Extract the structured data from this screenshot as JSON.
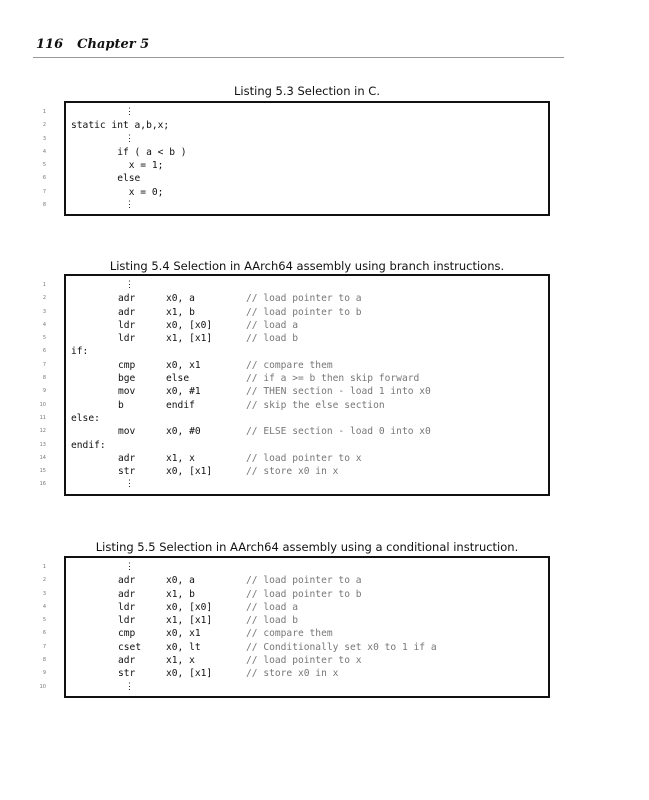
{
  "header": {
    "page_number": "116",
    "chapter": "Chapter 5"
  },
  "listings": [
    {
      "caption": "Listing 5.3 Selection in C.",
      "rows": [
        {
          "n": "1",
          "dots": "⋮"
        },
        {
          "n": "2",
          "text": "static int a,b,x;"
        },
        {
          "n": "3",
          "dots": "⋮"
        },
        {
          "n": "4",
          "text": "        if ( a < b )"
        },
        {
          "n": "5",
          "text": "          x = 1;"
        },
        {
          "n": "6",
          "text": "        else"
        },
        {
          "n": "7",
          "text": "          x = 0;"
        },
        {
          "n": "8",
          "dots": "⋮"
        }
      ]
    },
    {
      "caption": "Listing 5.4 Selection in AArch64 assembly using branch instructions.",
      "rows": [
        {
          "n": "1",
          "dots": "⋮"
        },
        {
          "n": "2",
          "op": "adr",
          "arg": "x0, a",
          "cm": "// load pointer to a"
        },
        {
          "n": "3",
          "op": "adr",
          "arg": "x1, b",
          "cm": "// load pointer to b"
        },
        {
          "n": "4",
          "op": "ldr",
          "arg": "x0, [x0]",
          "cm": "// load a"
        },
        {
          "n": "5",
          "op": "ldr",
          "arg": "x1, [x1]",
          "cm": "// load b"
        },
        {
          "n": "6",
          "lbl": "if:"
        },
        {
          "n": "7",
          "op": "cmp",
          "arg": "x0, x1",
          "cm": "// compare them"
        },
        {
          "n": "8",
          "op": "bge",
          "arg": "else",
          "cm": "// if a >= b then skip forward"
        },
        {
          "n": "9",
          "op": "mov",
          "arg": "x0, #1",
          "cm": "// THEN section - load 1 into x0"
        },
        {
          "n": "10",
          "op": "b",
          "arg": "endif",
          "cm": "// skip the else section"
        },
        {
          "n": "11",
          "lbl": "else:"
        },
        {
          "n": "12",
          "op": "mov",
          "arg": "x0, #0",
          "cm": "// ELSE section - load 0 into x0"
        },
        {
          "n": "13",
          "lbl": "endif:"
        },
        {
          "n": "14",
          "op": "adr",
          "arg": "x1, x",
          "cm": "// load pointer to x"
        },
        {
          "n": "15",
          "op": "str",
          "arg": "x0, [x1]",
          "cm": "// store x0 in x"
        },
        {
          "n": "16",
          "dots": "⋮"
        }
      ]
    },
    {
      "caption": "Listing 5.5 Selection in AArch64 assembly using a conditional instruction.",
      "rows": [
        {
          "n": "1",
          "dots": "⋮"
        },
        {
          "n": "2",
          "op": "adr",
          "arg": "x0, a",
          "cm": "// load pointer to a"
        },
        {
          "n": "3",
          "op": "adr",
          "arg": "x1, b",
          "cm": "// load pointer to b"
        },
        {
          "n": "4",
          "op": "ldr",
          "arg": "x0, [x0]",
          "cm": "// load a"
        },
        {
          "n": "5",
          "op": "ldr",
          "arg": "x1, [x1]",
          "cm": "// load b"
        },
        {
          "n": "6",
          "op": "cmp",
          "arg": "x0, x1",
          "cm": "// compare them"
        },
        {
          "n": "7",
          "op": "cset",
          "arg": "x0, lt",
          "cm": "// Conditionally set x0 to 1 if a"
        },
        {
          "n": "8",
          "op": "adr",
          "arg": "x1, x",
          "cm": "// load pointer to x"
        },
        {
          "n": "9",
          "op": "str",
          "arg": "x0, [x1]",
          "cm": "// store x0 in x"
        },
        {
          "n": "10",
          "dots": "⋮"
        }
      ]
    }
  ]
}
